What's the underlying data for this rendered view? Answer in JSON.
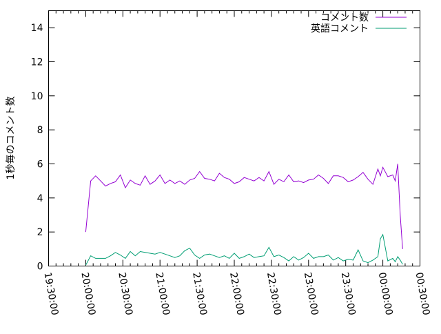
{
  "chart_data": {
    "type": "line",
    "title": "",
    "xlabel": "",
    "ylabel": "1秒毎のコメント数",
    "ylim": [
      0,
      15
    ],
    "yticks": [
      0,
      2,
      4,
      6,
      8,
      10,
      12,
      14
    ],
    "xlim": [
      "19:30:00",
      "00:30:00"
    ],
    "xticks": [
      "19:30:00",
      "20:00:00",
      "20:30:00",
      "21:00:00",
      "21:30:00",
      "22:00:00",
      "22:30:00",
      "23:00:00",
      "23:30:00",
      "00:00:00",
      "00:30:00"
    ],
    "grid": false,
    "legend_position": "top-right",
    "series": [
      {
        "name": "コメント数",
        "color": "#9400d3",
        "x": [
          "20:00",
          "20:04",
          "20:08",
          "20:12",
          "20:16",
          "20:20",
          "20:24",
          "20:28",
          "20:32",
          "20:36",
          "20:40",
          "20:44",
          "20:48",
          "20:52",
          "20:56",
          "21:00",
          "21:04",
          "21:08",
          "21:12",
          "21:16",
          "21:20",
          "21:24",
          "21:28",
          "21:32",
          "21:36",
          "21:40",
          "21:44",
          "21:48",
          "21:52",
          "21:56",
          "22:00",
          "22:04",
          "22:08",
          "22:12",
          "22:16",
          "22:20",
          "22:24",
          "22:28",
          "22:32",
          "22:36",
          "22:40",
          "22:44",
          "22:48",
          "22:52",
          "22:56",
          "23:00",
          "23:04",
          "23:08",
          "23:12",
          "23:16",
          "23:20",
          "23:24",
          "23:28",
          "23:32",
          "23:36",
          "23:40",
          "23:44",
          "23:48",
          "23:52",
          "23:56",
          "23:58",
          "00:00",
          "00:04",
          "00:08",
          "00:10",
          "00:12",
          "00:14",
          "00:16"
        ],
        "values": [
          2.0,
          5.0,
          5.3,
          5.0,
          4.7,
          4.85,
          4.95,
          5.35,
          4.6,
          5.05,
          4.85,
          4.75,
          5.3,
          4.8,
          5.0,
          5.35,
          4.85,
          5.05,
          4.85,
          5.0,
          4.8,
          5.05,
          5.15,
          5.55,
          5.15,
          5.1,
          5.0,
          5.45,
          5.2,
          5.1,
          4.85,
          4.95,
          5.2,
          5.1,
          5.0,
          5.2,
          5.0,
          5.55,
          4.8,
          5.1,
          4.95,
          5.35,
          4.95,
          5.0,
          4.9,
          5.05,
          5.1,
          5.35,
          5.15,
          4.85,
          5.3,
          5.3,
          5.2,
          4.95,
          5.05,
          5.25,
          5.5,
          5.1,
          4.8,
          5.7,
          5.3,
          5.8,
          5.25,
          5.35,
          5.0,
          6.0,
          3.0,
          1.0
        ]
      },
      {
        "name": "英語コメント",
        "color": "#009e73",
        "x": [
          "20:00",
          "20:04",
          "20:08",
          "20:12",
          "20:16",
          "20:20",
          "20:24",
          "20:28",
          "20:32",
          "20:36",
          "20:40",
          "20:44",
          "20:48",
          "20:52",
          "20:56",
          "21:00",
          "21:04",
          "21:08",
          "21:12",
          "21:16",
          "21:20",
          "21:24",
          "21:28",
          "21:32",
          "21:36",
          "21:40",
          "21:44",
          "21:48",
          "21:52",
          "21:56",
          "22:00",
          "22:04",
          "22:08",
          "22:12",
          "22:16",
          "22:20",
          "22:24",
          "22:28",
          "22:32",
          "22:36",
          "22:40",
          "22:44",
          "22:48",
          "22:52",
          "22:56",
          "23:00",
          "23:04",
          "23:08",
          "23:12",
          "23:16",
          "23:20",
          "23:24",
          "23:28",
          "23:32",
          "23:36",
          "23:40",
          "23:44",
          "23:48",
          "23:52",
          "23:56",
          "23:58",
          "00:00",
          "00:04",
          "00:08",
          "00:10",
          "00:12",
          "00:14",
          "00:16"
        ],
        "values": [
          0.05,
          0.6,
          0.45,
          0.45,
          0.45,
          0.6,
          0.8,
          0.65,
          0.45,
          0.85,
          0.6,
          0.85,
          0.8,
          0.75,
          0.7,
          0.8,
          0.7,
          0.6,
          0.5,
          0.6,
          0.9,
          1.05,
          0.65,
          0.45,
          0.65,
          0.7,
          0.6,
          0.5,
          0.6,
          0.45,
          0.75,
          0.45,
          0.55,
          0.7,
          0.5,
          0.55,
          0.6,
          1.1,
          0.55,
          0.65,
          0.5,
          0.3,
          0.55,
          0.35,
          0.5,
          0.75,
          0.45,
          0.55,
          0.55,
          0.65,
          0.35,
          0.5,
          0.3,
          0.4,
          0.35,
          0.95,
          0.3,
          0.2,
          0.35,
          0.55,
          1.6,
          1.85,
          0.3,
          0.45,
          0.25,
          0.55,
          0.35,
          0.1
        ]
      }
    ]
  }
}
